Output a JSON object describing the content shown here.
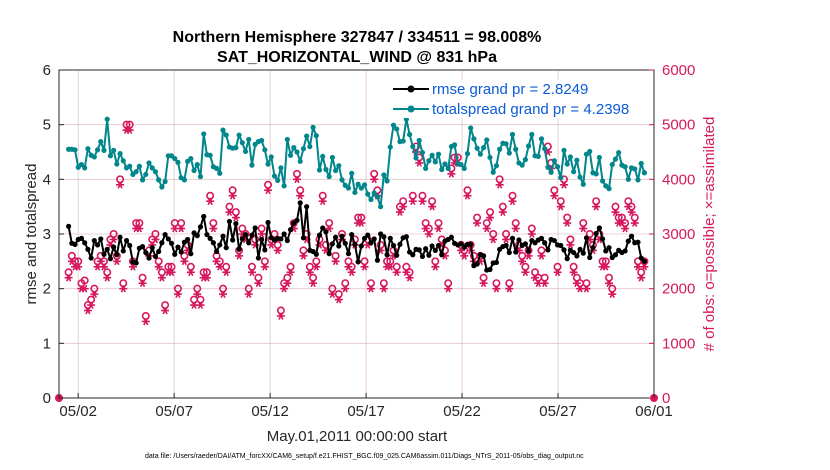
{
  "chart_data": {
    "type": "line",
    "title": "Northern Hemisphere 327847 / 334511 = 98.008%",
    "subtitle": "SAT_HORIZONTAL_WIND @ 831 hPa",
    "xlabel": "May.01,2011 00:00:00 start",
    "ylabel_left": "rmse and totalspread",
    "ylabel_right": "# of obs: o=possible; ×=assimilated",
    "xlim": [
      0,
      31
    ],
    "ylim_left": [
      0,
      6
    ],
    "ylim_right": [
      0,
      6000
    ],
    "x_ticks": [
      {
        "value": 1,
        "label": "05/02"
      },
      {
        "value": 6,
        "label": "05/07"
      },
      {
        "value": 11,
        "label": "05/12"
      },
      {
        "value": 16,
        "label": "05/17"
      },
      {
        "value": 21,
        "label": "05/22"
      },
      {
        "value": 26,
        "label": "05/27"
      },
      {
        "value": 31,
        "label": "06/01"
      }
    ],
    "y_ticks_left": [
      0,
      1,
      2,
      3,
      4,
      5,
      6
    ],
    "y_ticks_right": [
      0,
      1000,
      2000,
      3000,
      4000,
      5000,
      6000
    ],
    "legend": [
      "rmse grand pr = 2.8249",
      "totalspread grand pr = 4.2398"
    ],
    "footer": "data file: /Users/raeder/DAI/ATM_forcXX/CAM6_setup/f.e21.FHIST_BGC.f09_025.CAM6assim.011/Diags_NTrS_2011-05/obs_diag_output.nc",
    "colors": {
      "rmse": "#000000",
      "spread": "#00868b",
      "obs": "#d6185e",
      "grid": "#e2c6c6"
    },
    "series": [
      {
        "name": "rmse",
        "axis": "left",
        "values": [
          3.14,
          2.83,
          2.81,
          2.9,
          2.92,
          2.84,
          2.72,
          2.56,
          2.88,
          2.8,
          2.91,
          2.63,
          2.72,
          2.55,
          2.76,
          2.62,
          2.94,
          2.69,
          2.88,
          2.79,
          2.49,
          2.47,
          2.74,
          2.77,
          2.66,
          2.56,
          2.75,
          2.59,
          2.68,
          2.84,
          2.99,
          2.91,
          2.83,
          2.63,
          2.76,
          2.67,
          2.85,
          2.9,
          2.64,
          3.02,
          2.97,
          3.13,
          3.32,
          2.99,
          2.92,
          2.84,
          2.68,
          2.8,
          2.96,
          2.75,
          3.23,
          2.89,
          3.19,
          2.72,
          2.91,
          2.99,
          2.84,
          2.98,
          3.11,
          2.56,
          2.9,
          2.71,
          3.21,
          2.93,
          2.89,
          2.92,
          2.91,
          3.0,
          2.88,
          3.08,
          3.2,
          3.25,
          3.57,
          2.93,
          3.5,
          2.7,
          2.68,
          2.63,
          2.98,
          3.11,
          3.04,
          2.64,
          2.82,
          2.94,
          2.78,
          2.96,
          2.83,
          2.64,
          2.99,
          2.81,
          2.49,
          2.78,
          2.92,
          2.98,
          2.84,
          2.91,
          2.52,
          3.0,
          2.95,
          2.62,
          2.92,
          2.79,
          2.61,
          2.81,
          2.93,
          2.95,
          2.67,
          2.62,
          2.72,
          2.71,
          2.59,
          2.73,
          2.61,
          2.78,
          2.7,
          2.79,
          2.62,
          2.87,
          2.9,
          2.94,
          2.83,
          2.8,
          2.82,
          2.76,
          2.81,
          2.81,
          2.42,
          2.45,
          2.62,
          2.6,
          2.34,
          2.35,
          2.47,
          2.48,
          2.72,
          2.77,
          2.79,
          2.66,
          2.92,
          2.67,
          2.89,
          2.79,
          2.82,
          2.69,
          2.88,
          2.84,
          2.89,
          2.92,
          2.84,
          2.71,
          2.9,
          2.88,
          2.8,
          2.79,
          2.71,
          2.55,
          2.7,
          2.66,
          2.6,
          2.72,
          2.65,
          2.93,
          2.57,
          2.75,
          3.01,
          3.11,
          2.91,
          2.69,
          2.75,
          2.57,
          2.62,
          2.7,
          2.66,
          2.69,
          2.87,
          2.96,
          2.84,
          2.85,
          2.56,
          2.5
        ]
      },
      {
        "name": "totalspread",
        "axis": "left",
        "values": [
          4.55,
          4.55,
          4.54,
          4.22,
          4.27,
          4.21,
          4.56,
          4.44,
          4.41,
          4.54,
          4.69,
          4.53,
          5.1,
          4.43,
          4.53,
          4.28,
          4.47,
          4.34,
          4.21,
          4.24,
          4.09,
          4.14,
          4.24,
          3.99,
          4.09,
          4.3,
          4.21,
          4.14,
          3.99,
          3.86,
          3.96,
          4.43,
          4.43,
          4.38,
          4.31,
          4.03,
          3.99,
          4.33,
          4.38,
          4.16,
          4.27,
          4.05,
          4.83,
          4.45,
          4.44,
          4.23,
          4.2,
          4.11,
          4.9,
          4.81,
          4.59,
          4.57,
          4.58,
          4.81,
          4.67,
          4.51,
          4.73,
          4.26,
          4.64,
          4.69,
          4.71,
          4.54,
          4.28,
          4.41,
          4.06,
          3.98,
          4.21,
          3.88,
          4.73,
          4.44,
          4.58,
          4.5,
          4.33,
          4.56,
          4.79,
          4.6,
          4.95,
          4.8,
          4.17,
          4.42,
          4.18,
          4.05,
          4.4,
          4.16,
          4.25,
          3.99,
          3.89,
          3.84,
          4.11,
          3.76,
          3.91,
          3.84,
          3.9,
          3.73,
          3.63,
          3.75,
          3.68,
          3.5,
          4.08,
          3.97,
          4.59,
          4.99,
          4.92,
          4.69,
          4.7,
          5.1,
          4.82,
          4.6,
          4.39,
          4.71,
          4.49,
          4.2,
          4.34,
          4.44,
          4.32,
          4.46,
          4.18,
          4.28,
          4.2,
          4.6,
          4.63,
          4.28,
          4.27,
          4.2,
          4.47,
          4.94,
          4.74,
          4.57,
          4.46,
          4.58,
          4.72,
          4.4,
          4.13,
          4.25,
          4.55,
          4.66,
          4.65,
          4.48,
          4.82,
          4.55,
          4.3,
          4.26,
          4.36,
          4.61,
          4.82,
          4.43,
          4.42,
          4.74,
          4.56,
          4.22,
          4.13,
          4.34,
          4.23,
          4.03,
          4.53,
          4.28,
          4.41,
          4.14,
          4.35,
          4.04,
          3.91,
          4.46,
          4.51,
          4.12,
          4.1,
          4.4,
          3.97,
          3.88,
          3.83,
          4.27,
          4.37,
          4.49,
          4.26,
          4.23,
          4.0,
          4.21,
          4.19,
          3.99,
          4.29,
          4.12
        ]
      },
      {
        "name": "obs_possible",
        "axis": "right",
        "values": [
          2300,
          2600,
          2500,
          2500,
          2100,
          2150,
          1700,
          1800,
          2000,
          2500,
          2600,
          2500,
          2300,
          2900,
          3000,
          2600,
          4000,
          2100,
          5000,
          5000,
          2500,
          3200,
          3200,
          2200,
          1500,
          2700,
          2900,
          3000,
          2500,
          2300,
          1700,
          2400,
          2400,
          3200,
          2000,
          3200,
          2600,
          2800,
          2400,
          1800,
          2000,
          1800,
          2300,
          2300,
          3700,
          3200,
          2600,
          2500,
          2000,
          2400,
          3500,
          3800,
          3400,
          2700,
          3100,
          3000,
          2000,
          2400,
          2900,
          2200,
          3100,
          2500,
          3900,
          2900,
          3000,
          2800,
          1600,
          2100,
          2200,
          2400,
          3200,
          4100,
          3800,
          2700,
          3000,
          2400,
          2200,
          2500,
          2900,
          3700,
          2800,
          3200,
          2000,
          2600,
          1900,
          3000,
          2100,
          2500,
          2400,
          2900,
          3300,
          3300,
          2500,
          2900,
          2100,
          4100,
          3800,
          2800,
          2100,
          2500,
          2500,
          2700,
          2400,
          3500,
          3600,
          2400,
          2300,
          3700,
          4600,
          4400,
          3700,
          3200,
          3100,
          3600,
          2500,
          3200,
          2900,
          2700,
          2100,
          4200,
          4400,
          4400,
          2800,
          2700,
          3800,
          2800,
          2600,
          3300,
          2600,
          2200,
          3200,
          3400,
          3000,
          2100,
          4000,
          3500,
          3000,
          2100,
          3700,
          3200,
          2800,
          2600,
          2400,
          2700,
          3100,
          2300,
          2200,
          2700,
          2200,
          4600,
          4300,
          3800,
          2400,
          3600,
          4000,
          3300,
          2900,
          2400,
          2200,
          2100,
          3200,
          2100,
          3000,
          2800,
          3600,
          3000,
          2500,
          2500,
          2200,
          2000,
          3500,
          3300,
          3300,
          3200,
          3600,
          3500,
          3300,
          2500,
          2300,
          2500
        ]
      },
      {
        "name": "obs_assimilated",
        "axis": "right",
        "values": [
          2200,
          2500,
          2400,
          2400,
          2000,
          2000,
          1600,
          1700,
          1900,
          2400,
          2500,
          2400,
          2200,
          2800,
          2900,
          2500,
          3900,
          2000,
          4900,
          4900,
          2400,
          3100,
          3100,
          2100,
          1400,
          2600,
          2800,
          2900,
          2400,
          2200,
          1600,
          2300,
          2300,
          3100,
          1900,
          3100,
          2500,
          2700,
          2300,
          1700,
          1900,
          1700,
          2200,
          2200,
          3600,
          3100,
          2500,
          2400,
          1900,
          2300,
          3400,
          3700,
          3300,
          2600,
          3000,
          2900,
          1900,
          2300,
          2800,
          2100,
          3000,
          2400,
          3800,
          2800,
          2900,
          2700,
          1500,
          2000,
          2100,
          2300,
          3100,
          4000,
          3700,
          2600,
          2900,
          2300,
          2100,
          2400,
          2800,
          3600,
          2700,
          3100,
          1900,
          2500,
          1800,
          2900,
          2000,
          2400,
          2300,
          2800,
          3200,
          3200,
          2400,
          2800,
          2000,
          4000,
          3700,
          2700,
          2000,
          2400,
          2400,
          2600,
          2300,
          3400,
          3500,
          2300,
          2200,
          3600,
          4500,
          4300,
          3600,
          3100,
          3000,
          3500,
          2400,
          3100,
          2800,
          2600,
          2000,
          4100,
          4300,
          4300,
          2700,
          2600,
          3700,
          2700,
          2500,
          3200,
          2500,
          2100,
          3100,
          3300,
          2900,
          2000,
          3900,
          3400,
          2900,
          2000,
          3600,
          3100,
          2700,
          2500,
          2300,
          2600,
          3000,
          2200,
          2100,
          2600,
          2100,
          4500,
          4200,
          3700,
          2300,
          3500,
          3900,
          3200,
          2800,
          2300,
          2100,
          2000,
          3100,
          2000,
          2900,
          2700,
          3500,
          2900,
          2400,
          2400,
          2100,
          1900,
          3400,
          3200,
          3200,
          3100,
          3500,
          3400,
          3200,
          2400,
          2200,
          2400
        ]
      }
    ]
  }
}
